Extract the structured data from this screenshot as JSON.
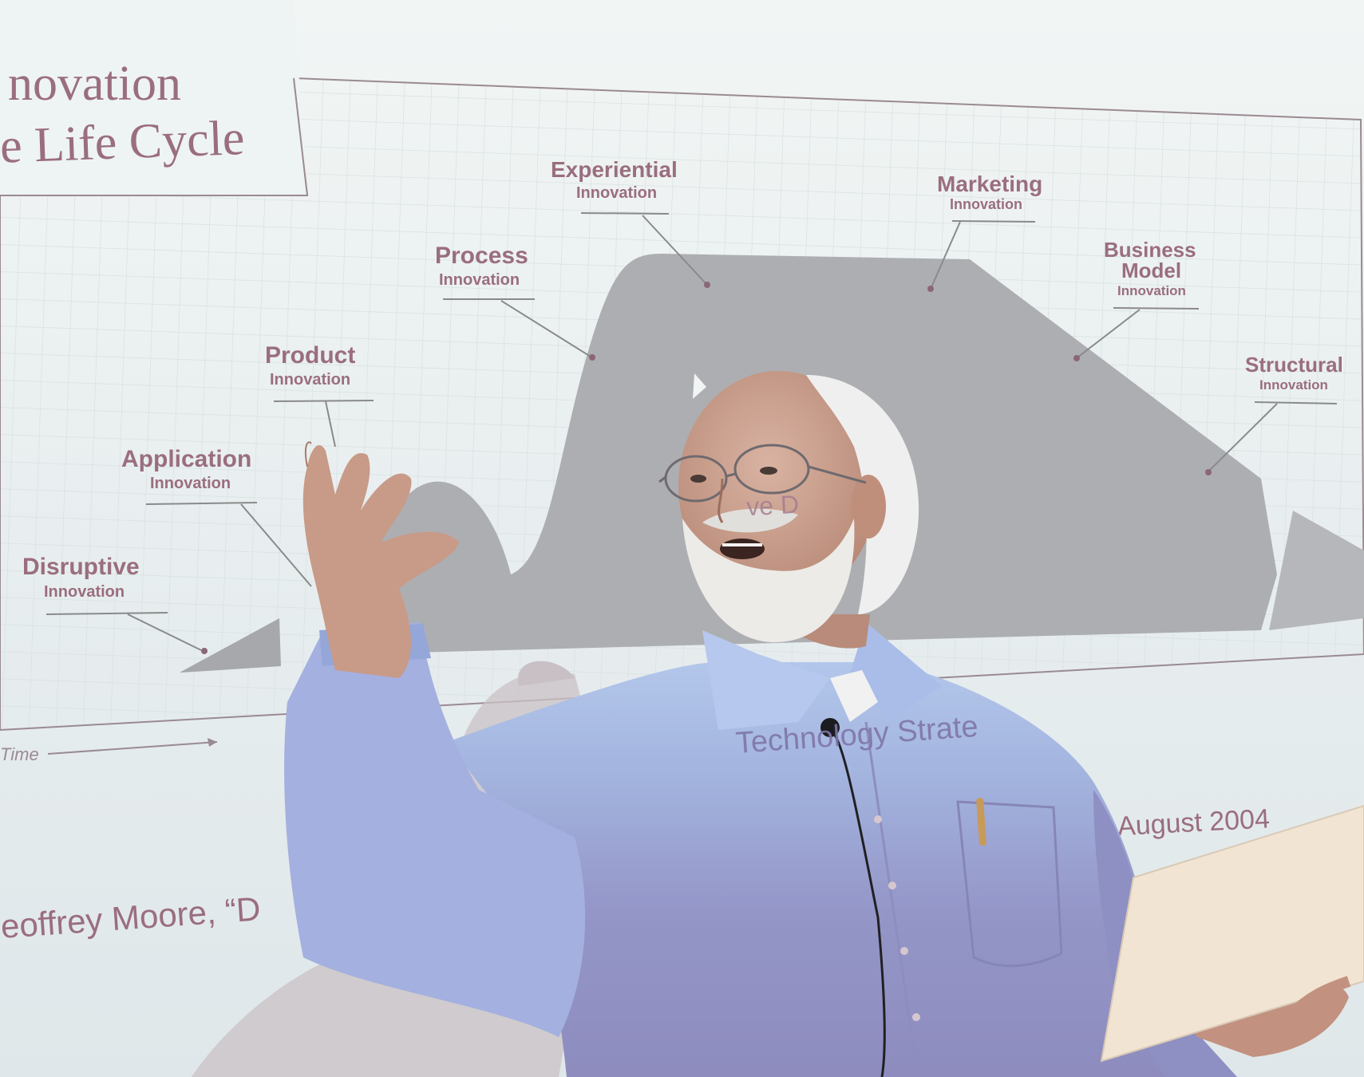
{
  "slide": {
    "title_line1": "novation",
    "title_line2": "e Life Cycle",
    "time_label": "Time",
    "date_text": "August 2004",
    "citation_text": "eoffrey Moore, “D",
    "overlay_text_face": "ve D",
    "overlay_text_shirt": "Technology Strate",
    "labels": [
      {
        "main": "Disruptive",
        "sub": "Innovation"
      },
      {
        "main": "Application",
        "sub": "Innovation"
      },
      {
        "main": "Product",
        "sub": "Innovation"
      },
      {
        "main": "Process",
        "sub": "Innovation"
      },
      {
        "main": "Experiential",
        "sub": "Innovation"
      },
      {
        "main": "Marketing",
        "sub": "Innovation"
      },
      {
        "main": "Business",
        "main2": "Model",
        "sub": "Innovation"
      },
      {
        "main": "Structural",
        "sub": "Innovation"
      }
    ]
  },
  "colors": {
    "screen": "#e9f0f1",
    "grid": "#cdd8da",
    "text": "#9a6e7e",
    "shape": "#a9aaad",
    "shirt": "#9eb0d8",
    "shirt_shadow": "#8d8fbf",
    "skin": "#c9a08e",
    "hair": "#f2f2f2"
  }
}
